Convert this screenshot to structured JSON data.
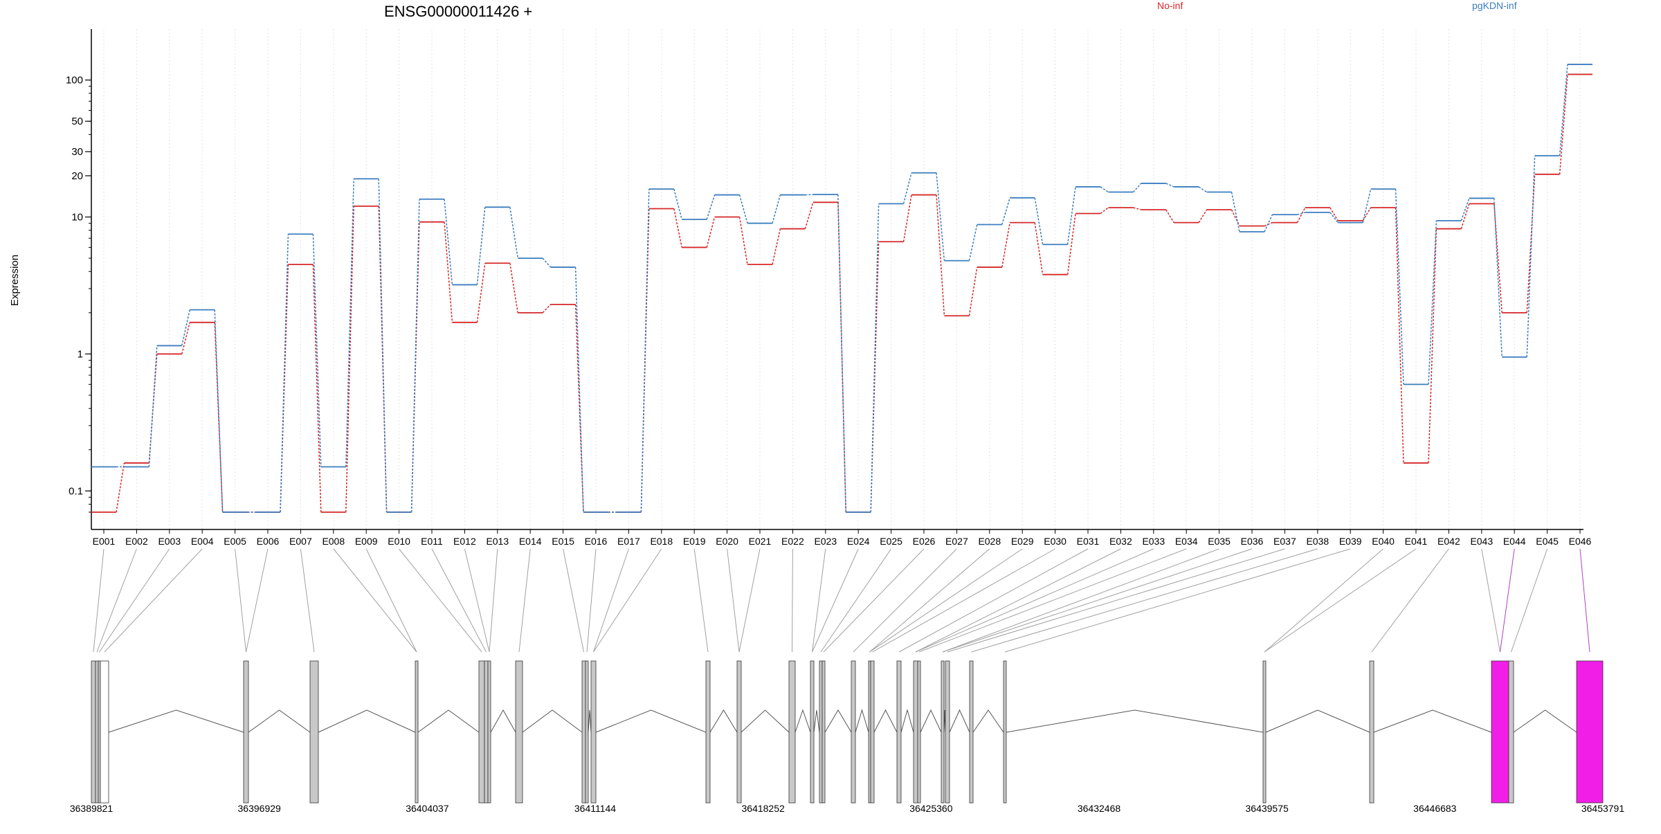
{
  "chart_data": {
    "type": "line",
    "title": "ENSG00000011426 +",
    "ylabel": "Expression",
    "xlabel": "",
    "yscale": "log",
    "ylim": [
      0.07,
      170
    ],
    "yticks": [
      0.1,
      1,
      10,
      20,
      30,
      50,
      100
    ],
    "ytick_labels": [
      "0.1",
      "1",
      "10",
      "20",
      "30",
      "50",
      "100"
    ],
    "grid": "vertical dotted",
    "legend": [
      {
        "name": "No-inf",
        "color": "#d62728"
      },
      {
        "name": "pgKDN-inf",
        "color": "#3a7dbf"
      }
    ],
    "categories": [
      "E001",
      "E002",
      "E003",
      "E004",
      "E005",
      "E006",
      "E007",
      "E008",
      "E009",
      "E010",
      "E011",
      "E012",
      "E013",
      "E014",
      "E015",
      "E016",
      "E017",
      "E018",
      "E019",
      "E020",
      "E021",
      "E022",
      "E023",
      "E024",
      "E025",
      "E026",
      "E027",
      "E028",
      "E029",
      "E030",
      "E031",
      "E032",
      "E033",
      "E034",
      "E035",
      "E036",
      "E037",
      "E038",
      "E039",
      "E040",
      "E041",
      "E042",
      "E043",
      "E044",
      "E045",
      "E046"
    ],
    "series": [
      {
        "name": "No-inf",
        "color": "#d62728",
        "values": [
          0.07,
          0.16,
          1.0,
          1.7,
          0.07,
          0.07,
          4.5,
          0.07,
          12.0,
          0.07,
          9.2,
          1.7,
          4.6,
          2.0,
          2.3,
          0.07,
          0.07,
          11.5,
          6.0,
          10.0,
          4.5,
          8.2,
          12.8,
          0.07,
          6.6,
          14.5,
          1.9,
          4.3,
          9.1,
          3.8,
          10.6,
          11.7,
          11.3,
          9.1,
          11.3,
          8.6,
          9.1,
          11.7,
          9.4,
          11.7,
          0.16,
          8.2,
          12.5,
          2.0,
          20.5,
          110.0
        ]
      },
      {
        "name": "pgKDN-inf",
        "color": "#3a7dbf",
        "values": [
          0.15,
          0.15,
          1.15,
          2.1,
          0.07,
          0.07,
          7.5,
          0.15,
          19.0,
          0.07,
          13.5,
          3.2,
          11.8,
          5.0,
          4.3,
          0.07,
          0.07,
          16.0,
          9.6,
          14.5,
          9.0,
          14.5,
          14.6,
          0.07,
          12.5,
          21.0,
          4.8,
          8.8,
          13.8,
          6.3,
          16.6,
          15.2,
          17.6,
          16.6,
          15.2,
          7.8,
          10.4,
          10.8,
          9.1,
          16.0,
          0.6,
          9.4,
          13.7,
          0.95,
          28.0,
          130.0
        ]
      }
    ],
    "gene_model": {
      "coord_labels": [
        "36389821",
        "36396929",
        "36404037",
        "36411144",
        "36418252",
        "36425360",
        "36432468",
        "36439575",
        "36446683",
        "36453791"
      ],
      "coord_range": [
        36389821,
        36453791
      ],
      "highlighted_exons": [
        "E044",
        "E046"
      ],
      "highlight_color": "#f01ee6"
    }
  }
}
